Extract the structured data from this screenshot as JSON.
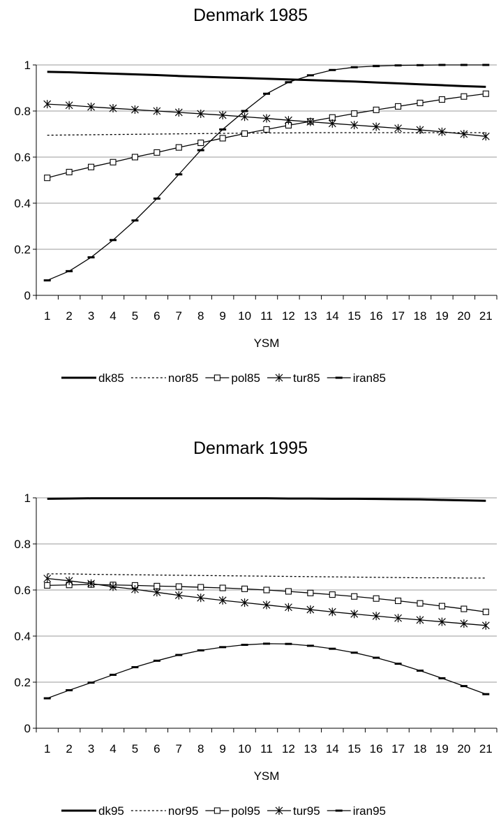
{
  "chart_data": [
    {
      "type": "line",
      "title": "Denmark 1985",
      "xlabel": "YSM",
      "ylabel": "",
      "x": [
        1,
        2,
        3,
        4,
        5,
        6,
        7,
        8,
        9,
        10,
        11,
        12,
        13,
        14,
        15,
        16,
        17,
        18,
        19,
        20,
        21
      ],
      "ylim": [
        0,
        1
      ],
      "yticks": [
        "0",
        "0.2",
        "0.4",
        "0.6",
        "0.8",
        "1"
      ],
      "grid": "horizontal",
      "legend_position": "bottom",
      "series": [
        {
          "name": "dk85",
          "style": "thick",
          "values": [
            0.97,
            0.968,
            0.965,
            0.962,
            0.959,
            0.956,
            0.952,
            0.949,
            0.946,
            0.943,
            0.94,
            0.937,
            0.934,
            0.931,
            0.928,
            0.924,
            0.92,
            0.916,
            0.912,
            0.908,
            0.905
          ]
        },
        {
          "name": "nor85",
          "style": "dotted",
          "values": [
            0.695,
            0.696,
            0.697,
            0.698,
            0.699,
            0.7,
            0.701,
            0.702,
            0.703,
            0.704,
            0.705,
            0.705,
            0.706,
            0.706,
            0.706,
            0.706,
            0.706,
            0.706,
            0.706,
            0.706,
            0.706
          ]
        },
        {
          "name": "pol85",
          "style": "square",
          "values": [
            0.51,
            0.535,
            0.557,
            0.578,
            0.6,
            0.62,
            0.642,
            0.662,
            0.682,
            0.702,
            0.72,
            0.738,
            0.755,
            0.772,
            0.789,
            0.805,
            0.82,
            0.835,
            0.85,
            0.863,
            0.875
          ]
        },
        {
          "name": "tur85",
          "style": "star",
          "values": [
            0.83,
            0.825,
            0.818,
            0.812,
            0.806,
            0.8,
            0.794,
            0.788,
            0.782,
            0.775,
            0.768,
            0.76,
            0.753,
            0.746,
            0.739,
            0.732,
            0.725,
            0.718,
            0.71,
            0.7,
            0.69
          ]
        },
        {
          "name": "iran85",
          "style": "dash",
          "values": [
            0.065,
            0.105,
            0.165,
            0.24,
            0.325,
            0.42,
            0.525,
            0.63,
            0.72,
            0.8,
            0.875,
            0.925,
            0.955,
            0.978,
            0.99,
            0.995,
            0.998,
            0.999,
            1.0,
            1.0,
            1.0
          ]
        }
      ]
    },
    {
      "type": "line",
      "title": "Denmark 1995",
      "xlabel": "YSM",
      "ylabel": "",
      "x": [
        1,
        2,
        3,
        4,
        5,
        6,
        7,
        8,
        9,
        10,
        11,
        12,
        13,
        14,
        15,
        16,
        17,
        18,
        19,
        20,
        21
      ],
      "ylim": [
        0,
        1
      ],
      "yticks": [
        "0",
        "0.2",
        "0.4",
        "0.6",
        "0.8",
        "1"
      ],
      "grid": "horizontal",
      "legend_position": "bottom",
      "series": [
        {
          "name": "dk95",
          "style": "thick",
          "values": [
            0.996,
            0.997,
            0.998,
            0.998,
            0.998,
            0.998,
            0.998,
            0.998,
            0.998,
            0.998,
            0.998,
            0.997,
            0.997,
            0.996,
            0.996,
            0.995,
            0.994,
            0.993,
            0.991,
            0.989,
            0.987
          ]
        },
        {
          "name": "nor95",
          "style": "dotted",
          "values": [
            0.67,
            0.67,
            0.668,
            0.667,
            0.666,
            0.665,
            0.664,
            0.663,
            0.662,
            0.661,
            0.66,
            0.659,
            0.658,
            0.657,
            0.656,
            0.655,
            0.654,
            0.653,
            0.653,
            0.652,
            0.652
          ]
        },
        {
          "name": "pol95",
          "style": "square",
          "values": [
            0.62,
            0.622,
            0.624,
            0.622,
            0.62,
            0.617,
            0.615,
            0.612,
            0.609,
            0.605,
            0.6,
            0.594,
            0.587,
            0.58,
            0.572,
            0.563,
            0.553,
            0.542,
            0.53,
            0.518,
            0.505
          ]
        },
        {
          "name": "tur95",
          "style": "star",
          "values": [
            0.65,
            0.64,
            0.628,
            0.614,
            0.603,
            0.59,
            0.577,
            0.566,
            0.555,
            0.545,
            0.535,
            0.525,
            0.515,
            0.505,
            0.496,
            0.487,
            0.478,
            0.47,
            0.462,
            0.454,
            0.446
          ]
        },
        {
          "name": "iran95",
          "style": "dash",
          "values": [
            0.13,
            0.165,
            0.198,
            0.232,
            0.265,
            0.293,
            0.318,
            0.338,
            0.352,
            0.362,
            0.367,
            0.366,
            0.358,
            0.345,
            0.328,
            0.306,
            0.28,
            0.25,
            0.217,
            0.183,
            0.148
          ]
        }
      ]
    }
  ]
}
